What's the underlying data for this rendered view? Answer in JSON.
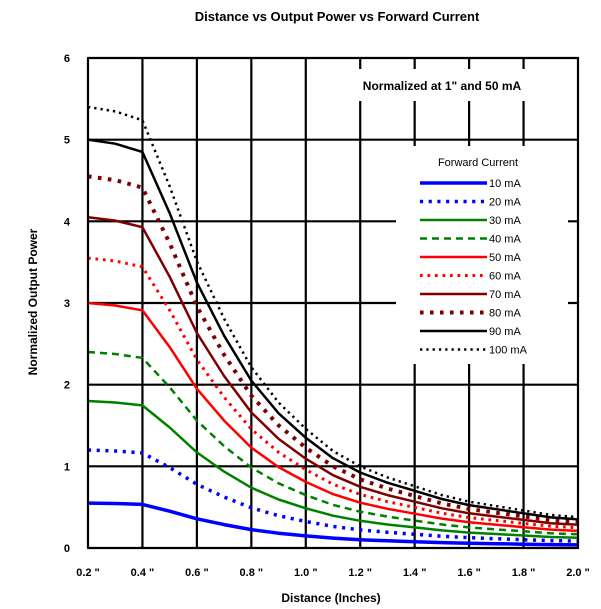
{
  "chart_data": {
    "type": "line",
    "title": "Distance vs Output Power vs Forward Current",
    "xlabel": "Distance (Inches)",
    "ylabel": "Normalized Output Power",
    "annotation": "Normalized at 1\" and 50 mA",
    "legend_title": "Forward Current",
    "legend_position": "right",
    "grid": true,
    "xlim": [
      0.2,
      2.0
    ],
    "ylim": [
      0,
      6
    ],
    "x_ticks": [
      0.2,
      0.4,
      0.6,
      0.8,
      1.0,
      1.2,
      1.4,
      1.6,
      1.8,
      2.0
    ],
    "x_tick_labels": [
      "0.2 \"",
      "0.4 \"",
      "0.6 \"",
      "0.8 \"",
      "1.0 \"",
      "1.2 \"",
      "1.4 \"",
      "1.6 \"",
      "1.8 \"",
      "2.0 \""
    ],
    "y_ticks": [
      0,
      1,
      2,
      3,
      4,
      5,
      6
    ],
    "y_tick_labels": [
      "0",
      "1",
      "2",
      "3",
      "4",
      "5",
      "6"
    ],
    "x": [
      0.2,
      0.3,
      0.4,
      0.5,
      0.6,
      0.7,
      0.8,
      0.9,
      1.0,
      1.1,
      1.2,
      1.3,
      1.4,
      1.5,
      1.6,
      1.7,
      1.8,
      1.9,
      2.0
    ],
    "base_curve": [
      1.0,
      0.99,
      0.97,
      0.82,
      0.65,
      0.52,
      0.41,
      0.33,
      0.27,
      0.22,
      0.185,
      0.16,
      0.14,
      0.12,
      0.105,
      0.095,
      0.085,
      0.075,
      0.07
    ],
    "series": [
      {
        "name": "10 mA",
        "scale": 0.55,
        "color": "#0000ff",
        "dash": "solid",
        "width": 3.5
      },
      {
        "name": "20 mA",
        "scale": 1.2,
        "color": "#0000ff",
        "dash": "dotted",
        "width": 3.5
      },
      {
        "name": "30 mA",
        "scale": 1.8,
        "color": "#008000",
        "dash": "solid",
        "width": 2.5
      },
      {
        "name": "40 mA",
        "scale": 2.4,
        "color": "#008000",
        "dash": "dashed",
        "width": 2.5
      },
      {
        "name": "50 mA",
        "scale": 3.0,
        "color": "#ff0000",
        "dash": "solid",
        "width": 2.5
      },
      {
        "name": "60 mA",
        "scale": 3.55,
        "color": "#ff0000",
        "dash": "dotted",
        "width": 3.0
      },
      {
        "name": "70 mA",
        "scale": 4.05,
        "color": "#800000",
        "dash": "solid",
        "width": 2.5
      },
      {
        "name": "80 mA",
        "scale": 4.55,
        "color": "#800000",
        "dash": "dotted",
        "width": 4.0
      },
      {
        "name": "90 mA",
        "scale": 5.0,
        "color": "#000000",
        "dash": "solid",
        "width": 2.5
      },
      {
        "name": "100 mA",
        "scale": 5.4,
        "color": "#000000",
        "dash": "dotted",
        "width": 2.5
      }
    ]
  }
}
